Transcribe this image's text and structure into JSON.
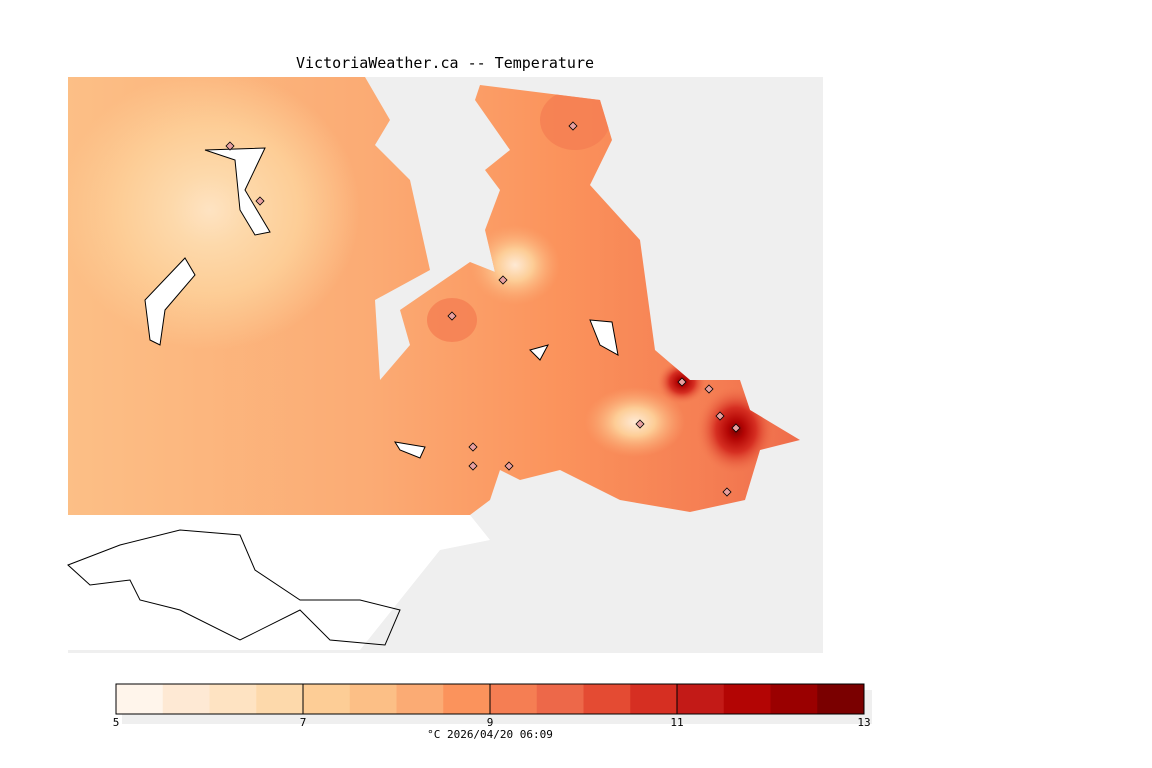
{
  "title": "VictoriaWeather.ca -- Temperature",
  "colorbar": {
    "min": 5,
    "max": 13,
    "step": 0.5,
    "tick_labels": [
      "5",
      "7",
      "9",
      "11",
      "13"
    ],
    "tick_values": [
      5,
      7,
      9,
      11,
      13
    ],
    "colors": [
      "#fff5eb",
      "#fee9d4",
      "#fee3c2",
      "#fdd9ab",
      "#fdcd96",
      "#fcbf86",
      "#fbab74",
      "#fb935c",
      "#f57e53",
      "#ed6849",
      "#e44b33",
      "#d62f22",
      "#c31a17",
      "#b30504",
      "#9a0000",
      "#7a0000"
    ],
    "units_label": "°C  2026/04/20 06:09"
  },
  "stations": [
    [
      230,
      146
    ],
    [
      260,
      201
    ],
    [
      573,
      126
    ],
    [
      503,
      280
    ],
    [
      452,
      316
    ],
    [
      682,
      382
    ],
    [
      709,
      389
    ],
    [
      720,
      416
    ],
    [
      640,
      424
    ],
    [
      736,
      428
    ],
    [
      473,
      447
    ],
    [
      473,
      466
    ],
    [
      509,
      466
    ],
    [
      727,
      492
    ]
  ]
}
